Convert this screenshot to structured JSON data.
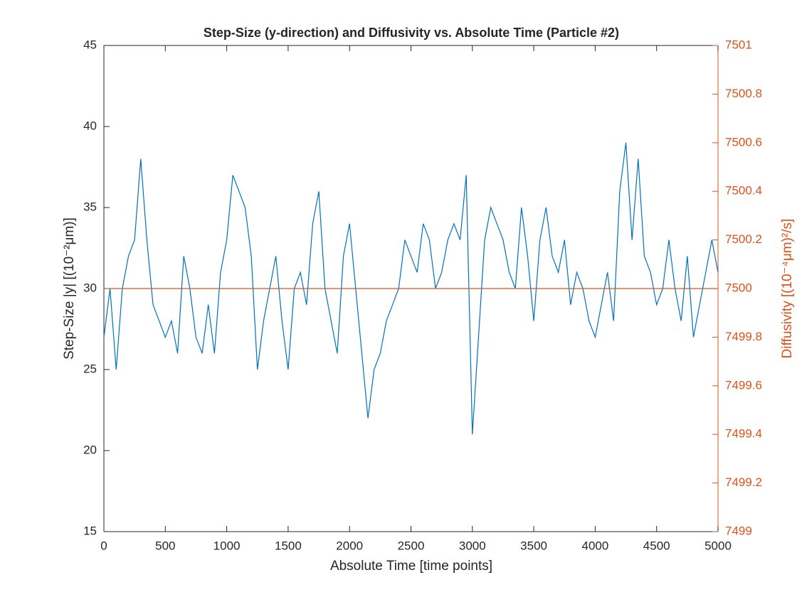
{
  "chart_data": {
    "type": "line",
    "title": "Step-Size (y-direction) and Diffusivity vs. Absolute Time (Particle #2)",
    "x_label": "Absolute Time [time points]",
    "y_label": "Step-Size |y| [(10⁻²μm)]",
    "y2_label": "Diffusivity [(10⁻⁴μm)²/s]",
    "xlim": [
      0,
      5000
    ],
    "xticks": [
      0,
      500,
      1000,
      1500,
      2000,
      2500,
      3000,
      3500,
      4000,
      4500,
      5000
    ],
    "ylim": [
      15,
      45
    ],
    "yticks": [
      15,
      20,
      25,
      30,
      35,
      40,
      45
    ],
    "y2lim": [
      7499,
      7501
    ],
    "y2ticks": [
      7499,
      7499.2,
      7499.4,
      7499.6,
      7499.8,
      7500,
      7500.2,
      7500.4,
      7500.6,
      7500.8,
      7501
    ],
    "y2color": "#d95319",
    "series": [
      {
        "name": "Step-Size",
        "color": "#0072bd",
        "x": [
          0,
          50,
          100,
          150,
          200,
          250,
          300,
          350,
          400,
          450,
          500,
          550,
          600,
          650,
          700,
          750,
          800,
          850,
          900,
          950,
          1000,
          1050,
          1100,
          1150,
          1200,
          1250,
          1300,
          1350,
          1400,
          1450,
          1500,
          1550,
          1600,
          1650,
          1700,
          1750,
          1800,
          1850,
          1900,
          1950,
          2000,
          2050,
          2100,
          2150,
          2200,
          2250,
          2300,
          2350,
          2400,
          2450,
          2500,
          2550,
          2600,
          2650,
          2700,
          2750,
          2800,
          2850,
          2900,
          2950,
          3000,
          3050,
          3100,
          3150,
          3200,
          3250,
          3300,
          3350,
          3400,
          3450,
          3500,
          3550,
          3600,
          3650,
          3700,
          3750,
          3800,
          3850,
          3900,
          3950,
          4000,
          4050,
          4100,
          4150,
          4200,
          4250,
          4300,
          4350,
          4400,
          4450,
          4500,
          4550,
          4600,
          4650,
          4700,
          4750,
          4800,
          4850,
          4900,
          4950,
          5000
        ],
        "values": [
          27,
          30,
          25,
          30,
          32,
          33,
          38,
          33,
          29,
          28,
          27,
          28,
          26,
          32,
          30,
          27,
          26,
          29,
          26,
          31,
          33,
          37,
          36,
          35,
          32,
          25,
          28,
          30,
          32,
          28,
          25,
          30,
          31,
          29,
          34,
          36,
          30,
          28,
          26,
          32,
          34,
          30,
          26,
          22,
          25,
          26,
          28,
          29,
          30,
          33,
          32,
          31,
          34,
          33,
          30,
          31,
          33,
          34,
          33,
          37,
          21,
          27,
          33,
          35,
          34,
          33,
          31,
          30,
          35,
          32,
          28,
          33,
          35,
          32,
          31,
          33,
          29,
          31,
          30,
          28,
          27,
          29,
          31,
          28,
          36,
          39,
          33,
          38,
          32,
          31,
          29,
          30,
          33,
          30,
          28,
          32,
          27,
          29,
          31,
          33,
          31
        ]
      },
      {
        "name": "Diffusivity",
        "color": "#d95319",
        "axis": "y2",
        "x": [
          0,
          5000
        ],
        "values": [
          7500,
          7500
        ]
      }
    ]
  }
}
